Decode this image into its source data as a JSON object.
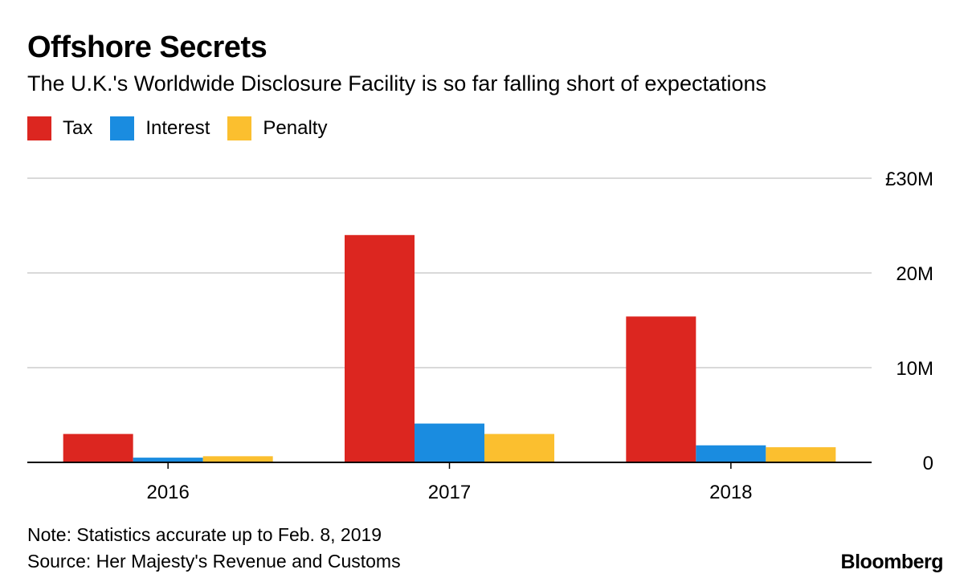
{
  "chart_data": {
    "type": "bar",
    "title": "Offshore Secrets",
    "subtitle": "The U.K.'s Worldwide Disclosure Facility is so far falling short of expectations",
    "categories": [
      "2016",
      "2017",
      "2018"
    ],
    "series": [
      {
        "name": "Tax",
        "color": "#dc2620",
        "values": [
          3.0,
          24.0,
          15.4
        ]
      },
      {
        "name": "Interest",
        "color": "#1a8ce0",
        "values": [
          0.5,
          4.1,
          1.8
        ]
      },
      {
        "name": "Penalty",
        "color": "#fbbf2f",
        "values": [
          0.65,
          3.0,
          1.6
        ]
      }
    ],
    "ylim": [
      0,
      30
    ],
    "yticks": [
      0,
      10,
      20,
      30
    ],
    "ytick_labels": [
      "0",
      "10M",
      "20M",
      "£30M"
    ],
    "y_axis_side": "right",
    "grid": true,
    "legend_position": "top-left",
    "xlabel": "",
    "ylabel": ""
  },
  "footer": {
    "note": "Note: Statistics accurate up to Feb. 8, 2019",
    "source": "Source: Her Majesty's Revenue and Customs",
    "brand": "Bloomberg"
  }
}
